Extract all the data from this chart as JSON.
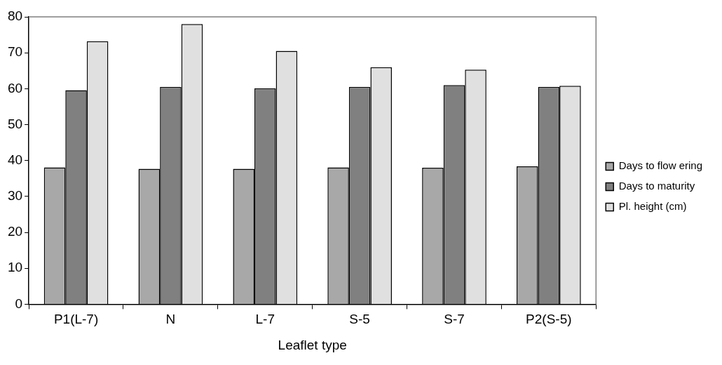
{
  "chart_data": {
    "type": "bar",
    "xlabel": "Leaflet type",
    "categories": [
      "P1(L-7)",
      "N",
      "L-7",
      "S-5",
      "S-7",
      "P2(S-5)"
    ],
    "series": [
      {
        "name": "Days to flow ering",
        "color": "#a8a8a8",
        "values": [
          38.1,
          37.7,
          37.7,
          38.1,
          38.0,
          38.4
        ]
      },
      {
        "name": "Days to maturity",
        "color": "#808080",
        "values": [
          59.6,
          60.5,
          60.1,
          60.5,
          61.0,
          60.5
        ]
      },
      {
        "name": "Pl. height (cm)",
        "color": "#e0e0e0",
        "values": [
          73.2,
          78.0,
          70.5,
          66.0,
          65.3,
          60.8
        ]
      }
    ],
    "ylim": [
      0,
      80
    ],
    "yticks": [
      0,
      10,
      20,
      30,
      40,
      50,
      60,
      70,
      80
    ],
    "grid": false,
    "legend": "right"
  }
}
